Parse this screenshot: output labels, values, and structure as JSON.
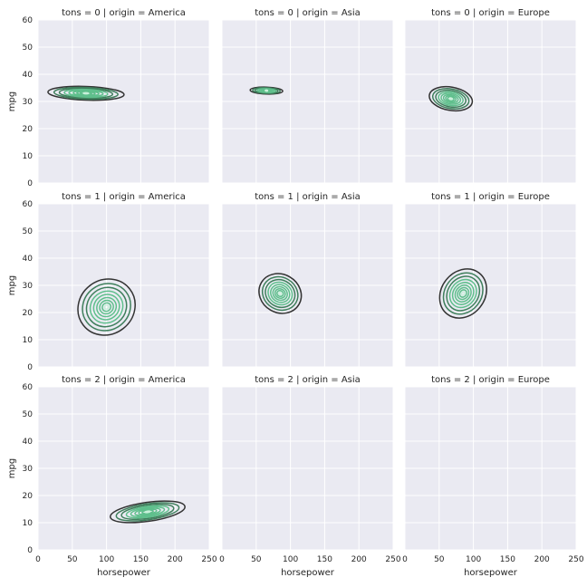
{
  "chart_data": {
    "type": "kde-contour-facet-grid",
    "x_label": "horsepower",
    "y_label": "mpg",
    "xlim": [
      0,
      250
    ],
    "ylim": [
      0,
      60
    ],
    "x_ticks": [
      0,
      50,
      100,
      150,
      200,
      250
    ],
    "y_ticks": [
      0,
      10,
      20,
      30,
      40,
      50,
      60
    ],
    "grid": true,
    "colors": {
      "background": "#eaeaf2",
      "grid": "#ffffff",
      "outer_contour": "#333333",
      "mid_contour": "#3f7f5c",
      "inner_contour": "#5fbf8c",
      "innermost_contour": "#c8f0da"
    },
    "facets": [
      {
        "title": "tons = 0 | origin = America",
        "tons": 0,
        "origin": "America",
        "kde": {
          "cx": 70,
          "cy": 33,
          "sx": 10,
          "sy": 14,
          "angle": -88,
          "has_data": true
        }
      },
      {
        "title": "tons = 0 | origin = Asia",
        "tons": 0,
        "origin": "Asia",
        "kde": {
          "cx": 65,
          "cy": 34,
          "sx": 5,
          "sy": 6,
          "angle": -88,
          "has_data": true
        }
      },
      {
        "title": "tons = 0 | origin = Europe",
        "tons": 0,
        "origin": "Europe",
        "kde": {
          "cx": 67,
          "cy": 31,
          "sx": 17,
          "sy": 8,
          "angle": -80,
          "has_data": true
        }
      },
      {
        "title": "tons = 1 | origin = America",
        "tons": 1,
        "origin": "America",
        "kde": {
          "cx": 100,
          "cy": 22,
          "sx": 43,
          "sy": 10,
          "angle": -38,
          "has_data": true
        }
      },
      {
        "title": "tons = 1 | origin = Asia",
        "tons": 1,
        "origin": "Asia",
        "kde": {
          "cx": 85,
          "cy": 27,
          "sx": 28,
          "sy": 8,
          "angle": -60,
          "has_data": true
        }
      },
      {
        "title": "tons = 1 | origin = Europe",
        "tons": 1,
        "origin": "Europe",
        "kde": {
          "cx": 85,
          "cy": 27,
          "sx": 38,
          "sy": 8,
          "angle": -52,
          "has_data": true
        }
      },
      {
        "title": "tons = 2 | origin = America",
        "tons": 2,
        "origin": "America",
        "kde": {
          "cx": 160,
          "cy": 14,
          "sx": 55,
          "sy": 3.5,
          "angle": -8,
          "has_data": true
        }
      },
      {
        "title": "tons = 2 | origin = Asia",
        "tons": 2,
        "origin": "Asia",
        "kde": {
          "has_data": false
        }
      },
      {
        "title": "tons = 2 | origin = Europe",
        "tons": 2,
        "origin": "Europe",
        "kde": {
          "has_data": false
        }
      }
    ]
  }
}
